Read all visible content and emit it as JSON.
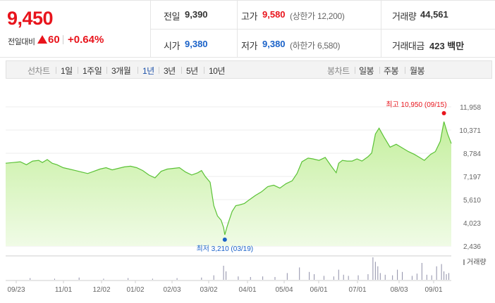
{
  "quote": {
    "price": "9,450",
    "change_label": "전일대비",
    "change_value": "60",
    "change_pct": "+0.64%",
    "prev_close_label": "전일",
    "prev_close": "9,390",
    "high_label": "고가",
    "high": "9,580",
    "upper_limit": "(상한가 12,200)",
    "volume_label": "거래량",
    "volume": "44,561",
    "open_label": "시가",
    "open": "9,380",
    "low_label": "저가",
    "low": "9,380",
    "lower_limit": "(하한가 6,580)",
    "turnover_label": "거래대금",
    "turnover": "423 백만",
    "up_color": "#e8141c",
    "down_color": "#1a62c8"
  },
  "period_bar": {
    "line_label": "선차트",
    "line_periods": [
      "1일",
      "1주일",
      "3개월",
      "1년",
      "3년",
      "5년",
      "10년"
    ],
    "active_period": "1년",
    "candle_label": "봉차트",
    "candle_periods": [
      "일봉",
      "주봉",
      "월봉"
    ]
  },
  "chart_data": {
    "type": "area",
    "y_ticks": [
      "11,958",
      "10,371",
      "8,784",
      "7,197",
      "5,610",
      "4,023",
      "2,436"
    ],
    "ylim": [
      2436,
      11958
    ],
    "x_ticks": [
      "09/23",
      "11/01",
      "12/02",
      "01/02",
      "02/03",
      "03/02",
      "04/01",
      "05/04",
      "06/01",
      "07/01",
      "08/03",
      "09/01"
    ],
    "max_label": "최고 10,950 (09/15)",
    "min_label": "최저 3,210 (03/19)",
    "volume_legend": "거래량",
    "series_x_days": [
      0,
      6,
      12,
      17,
      22,
      27,
      30,
      34,
      38,
      42,
      47,
      52,
      57,
      62,
      67,
      72,
      77,
      82,
      87,
      92,
      97,
      102,
      107,
      112,
      117,
      122,
      127,
      132,
      137,
      142,
      147,
      152,
      157,
      160,
      163,
      167,
      170,
      173,
      176,
      178,
      179,
      181,
      183,
      185,
      188,
      191,
      195,
      199,
      204,
      209,
      214,
      219,
      224,
      229,
      234,
      238,
      242,
      247,
      251,
      256,
      261,
      266,
      270,
      272,
      275,
      279,
      283,
      287,
      291,
      296,
      299,
      302,
      305,
      309,
      314,
      319,
      324,
      329,
      334,
      338,
      342,
      347,
      351,
      355,
      358,
      361,
      364
    ],
    "series_y": [
      8100,
      8150,
      8200,
      8000,
      8250,
      8300,
      8150,
      8350,
      8100,
      8000,
      7800,
      7700,
      7600,
      7500,
      7400,
      7550,
      7700,
      7800,
      7650,
      7750,
      7850,
      7900,
      7800,
      7600,
      7300,
      7100,
      7550,
      7700,
      7750,
      7800,
      7500,
      7300,
      7450,
      7600,
      7200,
      6800,
      5200,
      4500,
      4200,
      3700,
      3210,
      3800,
      4300,
      4800,
      5200,
      5250,
      5350,
      5600,
      5900,
      6150,
      6500,
      6600,
      6400,
      6700,
      6900,
      7400,
      8200,
      8450,
      8400,
      8300,
      8500,
      7900,
      7450,
      8100,
      8300,
      8250,
      8250,
      8400,
      8250,
      8550,
      8800,
      10100,
      10500,
      9900,
      9200,
      9400,
      9150,
      8900,
      8700,
      8500,
      8300,
      8700,
      8900,
      9600,
      10950,
      10100,
      9450
    ],
    "volume_days": [
      20,
      40,
      60,
      80,
      100,
      120,
      140,
      160,
      170,
      178,
      180,
      190,
      200,
      210,
      220,
      230,
      240,
      248,
      252,
      260,
      268,
      272,
      276,
      280,
      288,
      296,
      300,
      302,
      304,
      306,
      310,
      316,
      320,
      324,
      332,
      336,
      340,
      344,
      348,
      352,
      356,
      358,
      360,
      362
    ],
    "volume_vals": [
      3,
      2,
      4,
      2,
      3,
      2,
      3,
      4,
      8,
      25,
      15,
      6,
      5,
      6,
      5,
      12,
      22,
      14,
      10,
      7,
      6,
      18,
      9,
      7,
      8,
      10,
      40,
      32,
      24,
      12,
      9,
      8,
      18,
      14,
      7,
      11,
      30,
      9,
      8,
      24,
      28,
      15,
      10,
      12
    ],
    "line_color": "#5bc236",
    "fill_top": "#c4ef9d",
    "fill_bottom": "#f0fbe6"
  }
}
